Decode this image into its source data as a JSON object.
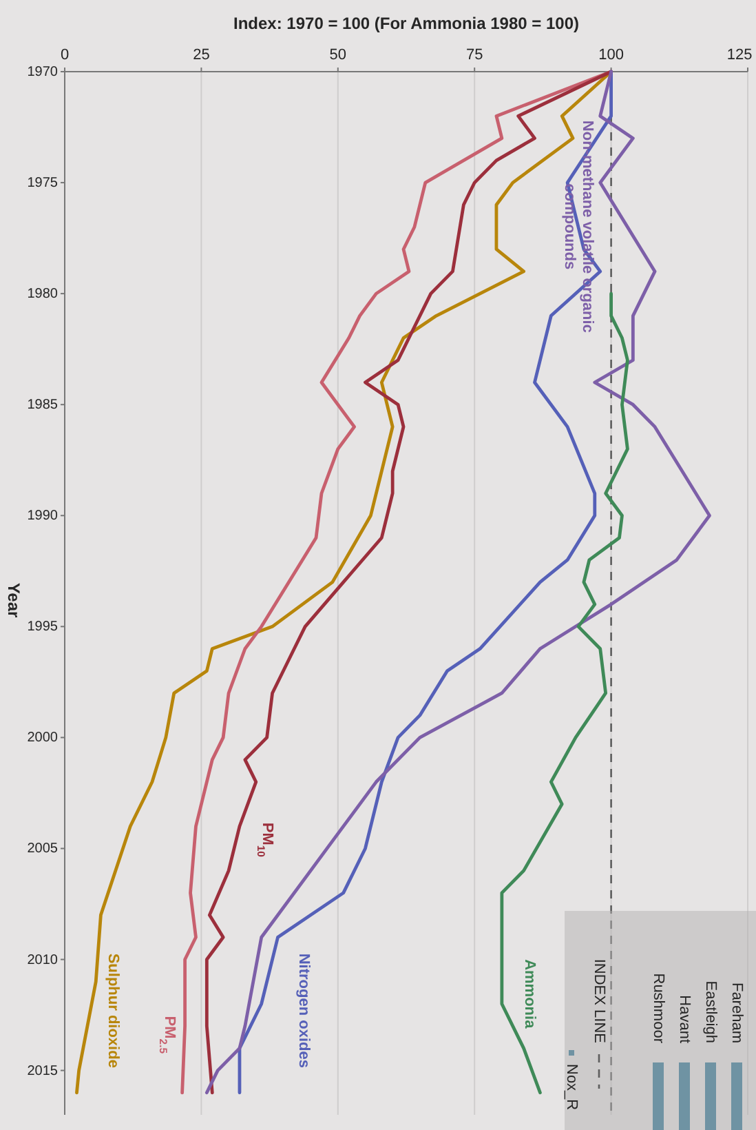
{
  "chart_data": {
    "type": "line",
    "xlabel": "Index: 1970 = 100 (For Ammonia 1980 = 100)",
    "ylabel": "Year",
    "xlim": [
      0,
      125
    ],
    "xticks": [
      0,
      25,
      50,
      75,
      100,
      125
    ],
    "ylim": [
      2017,
      1970
    ],
    "yticks": [
      1970,
      1975,
      1980,
      1985,
      1990,
      1995,
      2000,
      2005,
      2010,
      2015
    ],
    "grid": "x",
    "line_style": "solid",
    "series": [
      {
        "name": "Sulphur dioxide",
        "color": "#b8860b",
        "values": [
          1970,
          1972,
          1973,
          1975,
          1976,
          1978,
          1979,
          1980,
          1981,
          1982,
          1984,
          1986,
          1988,
          1990,
          1993,
          1995,
          1996,
          1997,
          1998,
          2000,
          2002,
          2004,
          2008,
          2011,
          2015,
          2016
        ],
        "x": [
          100,
          91,
          93,
          82,
          79,
          79,
          84,
          76,
          68,
          62,
          58,
          60,
          58,
          56,
          49,
          38,
          27,
          26,
          20,
          18.5,
          16,
          12,
          6.6,
          5.7,
          2.6,
          2.2
        ]
      },
      {
        "name": "PM$_{2.5}$",
        "color": "#c8606e",
        "values": [
          1970,
          1972,
          1973,
          1975,
          1977,
          1978,
          1979,
          1980,
          1981,
          1982,
          1984,
          1986,
          1987,
          1989,
          1991,
          1993,
          1995,
          1996,
          1998,
          2000,
          2001,
          2002,
          2004,
          2007,
          2009,
          2010,
          2013,
          2016
        ],
        "x": [
          100,
          79,
          80,
          66,
          64,
          62,
          63,
          57,
          54,
          52,
          47,
          53,
          50,
          47,
          46,
          41,
          36,
          33,
          30,
          29,
          27,
          26,
          24,
          23,
          24,
          22,
          22,
          21.5
        ]
      },
      {
        "name": "PM$_{10}$",
        "color": "#9c2f3c",
        "values": [
          1970,
          1972,
          1973,
          1974,
          1975,
          1976,
          1979,
          1980,
          1982,
          1983,
          1984,
          1985,
          1986,
          1988,
          1989,
          1991,
          1993,
          1995,
          1996,
          1998,
          2000,
          2001,
          2002,
          2004,
          2006,
          2008,
          2009,
          2010,
          2013,
          2016
        ],
        "x": [
          100,
          83,
          86,
          79,
          75,
          73,
          71,
          67,
          63,
          61,
          55,
          61,
          62,
          60,
          60,
          58,
          51,
          44,
          42,
          38,
          37,
          33,
          35,
          32,
          30,
          26.5,
          29,
          26,
          26,
          27
        ]
      },
      {
        "name": "Nitrogen oxides",
        "color": "#5560b8",
        "values": [
          1970,
          1972,
          1975,
          1978,
          1979,
          1981,
          1984,
          1986,
          1989,
          1990,
          1992,
          1993,
          1996,
          1997,
          1999,
          2000,
          2002,
          2005,
          2007,
          2009,
          2012,
          2014,
          2016
        ],
        "x": [
          100,
          100,
          92,
          95,
          98,
          89,
          86,
          92,
          97,
          97,
          92,
          87,
          76,
          70,
          65,
          61,
          58,
          55,
          51,
          39,
          36,
          32,
          32
        ]
      },
      {
        "name": "Non-methane volatile organic compounds",
        "color": "#7d5fa8",
        "values": [
          1970,
          1972,
          1973,
          1975,
          1977,
          1979,
          1981,
          1983,
          1984,
          1985,
          1986,
          1988,
          1990,
          1992,
          1994,
          1995,
          1996,
          1998,
          2000,
          2002,
          2005,
          2009,
          2013,
          2014,
          2015,
          2016
        ],
        "x": [
          100,
          98,
          104,
          98,
          103,
          108,
          104,
          104,
          97,
          104,
          108,
          113,
          118,
          112,
          100,
          93.5,
          87,
          80,
          65,
          57,
          48,
          36,
          33,
          32,
          28,
          26
        ]
      },
      {
        "name": "Ammonia",
        "color": "#3f8a58",
        "values": [
          1980,
          1981,
          1982,
          1983,
          1985,
          1987,
          1989,
          1990,
          1991,
          1992,
          1993,
          1994,
          1995,
          1996,
          1998,
          2000,
          2002,
          2003,
          2006,
          2007,
          2009,
          2012,
          2014,
          2016
        ],
        "x": [
          100,
          100,
          102,
          103,
          102,
          103,
          99,
          102,
          101.5,
          96,
          95,
          97,
          94,
          98,
          99,
          93.5,
          89,
          91,
          84,
          80,
          80,
          80,
          84,
          87
        ]
      }
    ],
    "ref_lines": [
      {
        "axis": "x",
        "value": 100,
        "label": "INDEX LINE",
        "color": "#5e5e5e",
        "line_style": "dashed"
      }
    ],
    "annotations": [
      "Fareham",
      "Eastleigh",
      "Havant",
      "Rushmoor",
      "Nox_R"
    ]
  }
}
